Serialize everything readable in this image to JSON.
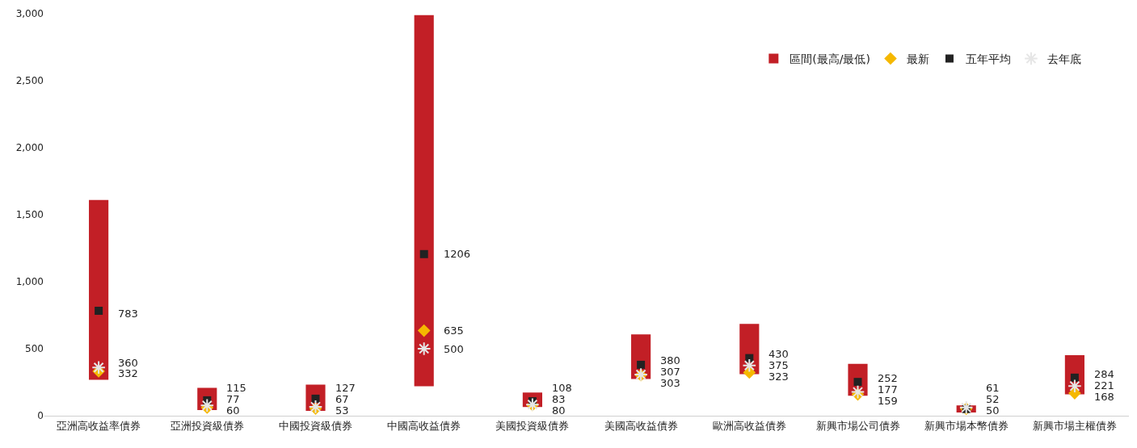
{
  "chart_data": {
    "type": "bar",
    "categories": [
      "亞洲高收益率債券",
      "亞洲投資級債券",
      "中國投資級債券",
      "中國高收益債券",
      "美國投資級債券",
      "美國高收益債券",
      "歐洲高收益債券",
      "新興市場公司債券",
      "新興市場本幣債券",
      "新興市場主權債券"
    ],
    "series": [
      {
        "name": "區間(最高/最低)",
        "color": "#c21f26",
        "base": [
          268,
          42,
          36,
          220,
          65,
          274,
          310,
          149,
          24,
          160
        ],
        "values": [
          1342,
          166,
          196,
          2770,
          108,
          333,
          375,
          238,
          53,
          292
        ]
      },
      {
        "name": "最新",
        "type": "scatter",
        "marker": "diamond",
        "color": "#f5b800",
        "values": [
          332,
          60,
          53,
          635,
          80,
          303,
          323,
          159,
          52,
          168
        ],
        "data_labels": true
      },
      {
        "name": "五年平均",
        "type": "scatter",
        "marker": "square",
        "color": "#222222",
        "values": [
          783,
          115,
          127,
          1206,
          108,
          380,
          430,
          252,
          50,
          284
        ],
        "data_labels": true
      },
      {
        "name": "去年底",
        "type": "scatter",
        "marker": "cross",
        "color": "#e6e6e6",
        "values": [
          360,
          77,
          67,
          500,
          83,
          307,
          375,
          177,
          61,
          221
        ],
        "data_labels": true
      }
    ],
    "ylim": [
      0,
      3000
    ],
    "yticks": [
      {
        "value": 0,
        "label": "0"
      },
      {
        "value": 500,
        "label": "500"
      },
      {
        "value": 1000,
        "label": "1,000"
      },
      {
        "value": 1500,
        "label": "1,500"
      },
      {
        "value": 2000,
        "label": "2,000"
      },
      {
        "value": 2500,
        "label": "2,500"
      },
      {
        "value": 3000,
        "label": "3,000"
      }
    ],
    "legend": "top right"
  }
}
